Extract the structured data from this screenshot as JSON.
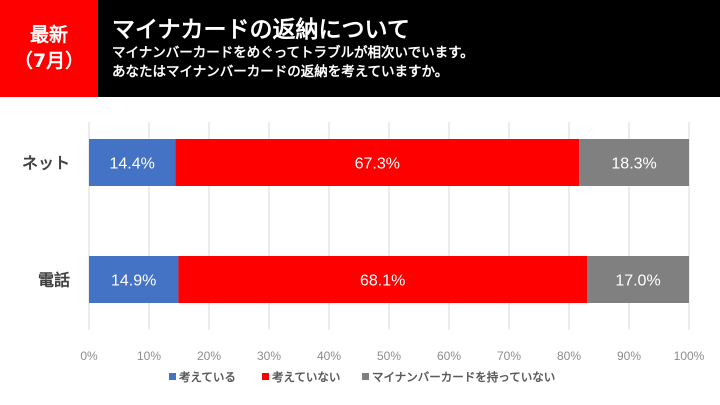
{
  "header": {
    "badge_line1": "最新",
    "badge_line2": "（7月）",
    "title": "マイナカードの返納について",
    "subtitle_line1": "マイナンバーカードをめぐってトラブルが相次いでいます。",
    "subtitle_line2": "あなたはマイナンバーカードの返納を考えていますか。"
  },
  "chart_data": {
    "type": "bar",
    "stacked": true,
    "orientation": "horizontal",
    "categories": [
      "ネット",
      "電話"
    ],
    "series": [
      {
        "name": "考えている",
        "color": "#4472c4",
        "values": [
          14.4,
          14.9
        ]
      },
      {
        "name": "考えていない",
        "color": "#ff0000",
        "values": [
          67.3,
          68.1
        ]
      },
      {
        "name": "マイナンバーカードを持っていない",
        "color": "#808080",
        "values": [
          18.3,
          17.0
        ]
      }
    ],
    "data_labels": [
      [
        "14.4%",
        "67.3%",
        "18.3%"
      ],
      [
        "14.9%",
        "68.1%",
        "17.0%"
      ]
    ],
    "xlim": [
      0,
      100
    ],
    "xticks": [
      "0%",
      "10%",
      "20%",
      "30%",
      "40%",
      "50%",
      "60%",
      "70%",
      "80%",
      "90%",
      "100%"
    ],
    "grid": true,
    "legend": "bottom"
  }
}
